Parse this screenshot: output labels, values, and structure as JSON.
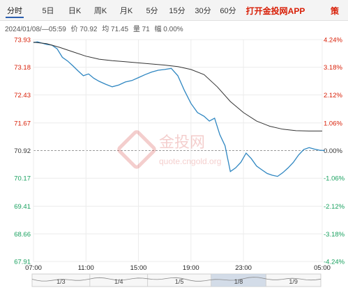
{
  "tabs": [
    {
      "label": "分时",
      "active": true
    },
    {
      "label": "5日"
    },
    {
      "label": "日K"
    },
    {
      "label": "周K"
    },
    {
      "label": "月K"
    },
    {
      "label": "5分"
    },
    {
      "label": "15分"
    },
    {
      "label": "30分"
    },
    {
      "label": "60分"
    }
  ],
  "promo": {
    "label": "打开金投网APP",
    "tail": "策"
  },
  "info": {
    "datetime": "2024/01/08/—05:59",
    "price_label": "价",
    "price": "70.92",
    "avg_label": "均",
    "avg": "71.45",
    "volume_label": "量",
    "volume": "71",
    "change_label": "幅",
    "change": "0.00%"
  },
  "watermark": {
    "brand": "金投网",
    "url": "quote.cngold.org"
  },
  "colors": {
    "price_line": "#2e86c1",
    "avg_line": "#333333",
    "up": "#d81e06",
    "down": "#19a15f",
    "flat": "#333333"
  },
  "chart_data": {
    "type": "line",
    "ylim": [
      67.91,
      73.93
    ],
    "yticks": [
      "73.93",
      "73.18",
      "72.43",
      "71.67",
      "70.92",
      "70.17",
      "69.41",
      "68.66",
      "67.91"
    ],
    "pct_ticks": [
      "4.24%",
      "3.18%",
      "2.12%",
      "1.06%",
      "0.00%",
      "-1.06%",
      "-2.12%",
      "-3.18%",
      "-4.24%"
    ],
    "base_price": 70.92,
    "xlabels": [
      "07:00",
      "11:00",
      "15:00",
      "19:00",
      "23:00",
      "05:00"
    ],
    "x_hours": [
      0,
      4,
      8,
      12,
      16,
      22
    ],
    "x_range_hours": [
      0,
      22
    ],
    "series": [
      {
        "role": "price",
        "x": [
          0,
          0.3,
          0.6,
          1.0,
          1.4,
          1.8,
          2.2,
          2.6,
          3.0,
          3.4,
          3.8,
          4.2,
          4.6,
          5.0,
          5.5,
          6.0,
          6.5,
          7.0,
          7.5,
          8.0,
          8.5,
          9.0,
          9.5,
          10.0,
          10.5,
          11.0,
          11.5,
          12.0,
          12.5,
          13.0,
          13.4,
          13.8,
          14.2,
          14.6,
          14.8,
          15.0,
          15.4,
          15.8,
          16.2,
          16.6,
          17.0,
          17.4,
          17.8,
          18.2,
          18.6,
          19.0,
          19.4,
          19.8,
          20.2,
          20.6,
          21.0,
          21.4,
          21.8,
          22.2
        ],
        "y": [
          73.85,
          73.87,
          73.84,
          73.8,
          73.78,
          73.68,
          73.45,
          73.35,
          73.22,
          73.08,
          72.95,
          73.0,
          72.88,
          72.8,
          72.72,
          72.65,
          72.7,
          72.78,
          72.82,
          72.9,
          72.98,
          73.05,
          73.1,
          73.12,
          73.15,
          72.95,
          72.55,
          72.2,
          71.95,
          71.85,
          71.72,
          71.8,
          71.35,
          71.05,
          70.7,
          70.35,
          70.45,
          70.6,
          70.85,
          70.7,
          70.5,
          70.4,
          70.3,
          70.25,
          70.22,
          70.32,
          70.45,
          70.6,
          70.8,
          70.95,
          71.0,
          70.96,
          70.93,
          70.92
        ]
      },
      {
        "role": "average",
        "x": [
          0,
          1,
          2,
          3,
          4,
          5,
          6,
          7,
          8,
          9,
          10,
          11,
          12,
          13,
          14,
          15,
          16,
          17,
          18,
          19,
          20,
          21,
          22
        ],
        "y": [
          73.86,
          73.82,
          73.72,
          73.6,
          73.48,
          73.4,
          73.36,
          73.33,
          73.3,
          73.27,
          73.24,
          73.2,
          73.12,
          72.98,
          72.65,
          72.25,
          71.95,
          71.72,
          71.58,
          71.5,
          71.46,
          71.45,
          71.45
        ]
      }
    ]
  },
  "navigator": {
    "labels": [
      "1/3",
      "1/4",
      "1/5",
      "1/8",
      "1/9"
    ]
  }
}
